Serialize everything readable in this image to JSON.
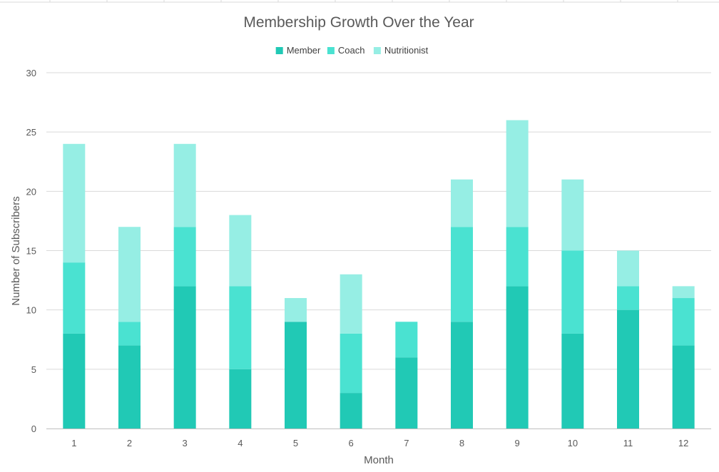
{
  "chart_data": {
    "type": "bar",
    "stacked": true,
    "title": "Membership Growth Over the Year",
    "xlabel": "Month",
    "ylabel": "Number of Subscribers",
    "categories": [
      "1",
      "2",
      "3",
      "4",
      "5",
      "6",
      "7",
      "8",
      "9",
      "10",
      "11",
      "12"
    ],
    "series": [
      {
        "name": "Member",
        "color": "#21c9b5",
        "values": [
          8,
          7,
          12,
          5,
          9,
          3,
          6,
          9,
          12,
          8,
          10,
          7
        ]
      },
      {
        "name": "Coach",
        "color": "#4ae2d1",
        "values": [
          6,
          2,
          5,
          7,
          0,
          5,
          3,
          8,
          5,
          7,
          2,
          4
        ]
      },
      {
        "name": "Nutritionist",
        "color": "#96eee4",
        "values": [
          10,
          8,
          7,
          6,
          2,
          5,
          0,
          4,
          9,
          6,
          3,
          1
        ]
      }
    ],
    "ylim": [
      0,
      30
    ],
    "yticks": [
      "0",
      "5",
      "10",
      "15",
      "20",
      "25",
      "30"
    ],
    "grid": true,
    "legend_position": "top"
  }
}
